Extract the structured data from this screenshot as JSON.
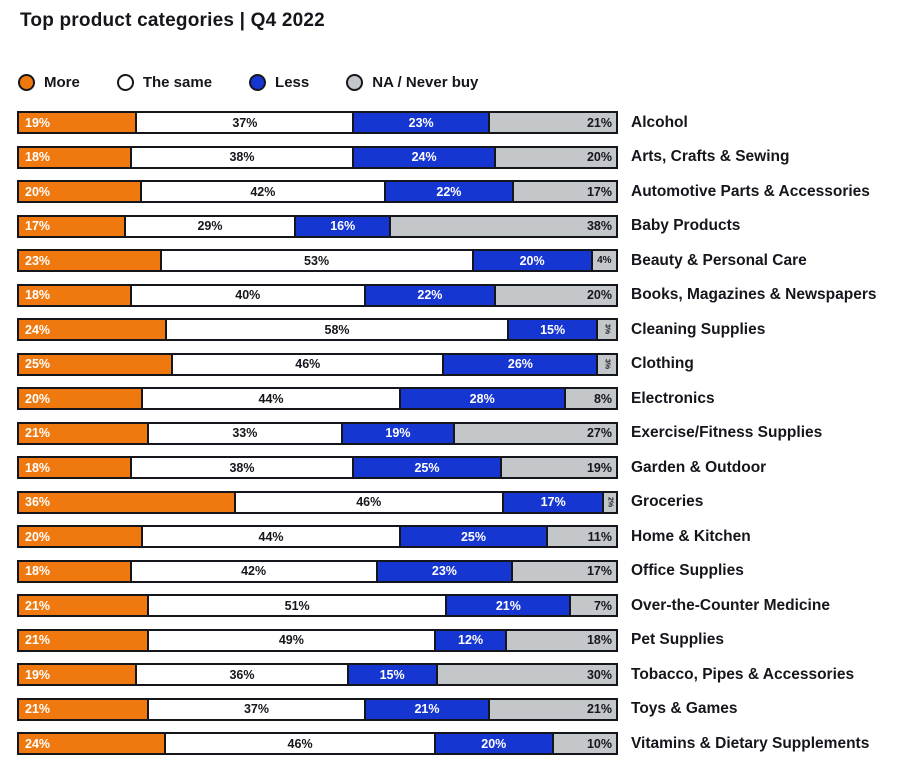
{
  "title": "Top product categories | Q4 2022",
  "colors": {
    "more": "#F0790F",
    "same": "#FFFFFF",
    "less": "#1636D1",
    "na": "#C4C7C9",
    "outline": "#15151C",
    "text_dark": "#15151C",
    "text_light": "#FFFFFF"
  },
  "legend": [
    {
      "key": "more",
      "label": "More"
    },
    {
      "key": "same",
      "label": "The same"
    },
    {
      "key": "less",
      "label": "Less"
    },
    {
      "key": "na",
      "label": "NA / Never buy"
    }
  ],
  "chart_data": {
    "type": "bar",
    "orientation": "horizontal",
    "stacked": true,
    "normalized_percent": true,
    "title": "Top product categories | Q4 2022",
    "value_suffix": "%",
    "legend_position": "top",
    "grid": false,
    "categories": [
      "Alcohol",
      "Arts, Crafts & Sewing",
      "Automotive Parts & Accessories",
      "Baby Products",
      "Beauty & Personal Care",
      "Books, Magazines & Newspapers",
      "Cleaning Supplies",
      "Clothing",
      "Electronics",
      "Exercise/Fitness Supplies",
      "Garden & Outdoor",
      "Groceries",
      "Home & Kitchen",
      "Office Supplies",
      "Over-the-Counter Medicine",
      "Pet Supplies",
      "Tobacco, Pipes & Accessories",
      "Toys & Games",
      "Vitamins & Dietary Supplements"
    ],
    "series": [
      {
        "key": "more",
        "name": "More",
        "color": "#F0790F",
        "values": [
          19,
          18,
          20,
          17,
          23,
          18,
          24,
          25,
          20,
          21,
          18,
          36,
          20,
          18,
          21,
          21,
          19,
          21,
          24
        ]
      },
      {
        "key": "same",
        "name": "The same",
        "color": "#FFFFFF",
        "values": [
          37,
          38,
          42,
          29,
          53,
          40,
          58,
          46,
          44,
          33,
          38,
          46,
          44,
          42,
          51,
          49,
          36,
          37,
          46
        ]
      },
      {
        "key": "less",
        "name": "Less",
        "color": "#1636D1",
        "values": [
          23,
          24,
          22,
          16,
          20,
          22,
          15,
          26,
          28,
          19,
          25,
          17,
          25,
          23,
          21,
          12,
          15,
          21,
          20
        ]
      },
      {
        "key": "na",
        "name": "NA / Never buy",
        "color": "#C4C7C9",
        "values": [
          21,
          20,
          17,
          38,
          4,
          20,
          3,
          3,
          8,
          27,
          19,
          2,
          11,
          17,
          7,
          18,
          30,
          21,
          10
        ]
      }
    ]
  }
}
